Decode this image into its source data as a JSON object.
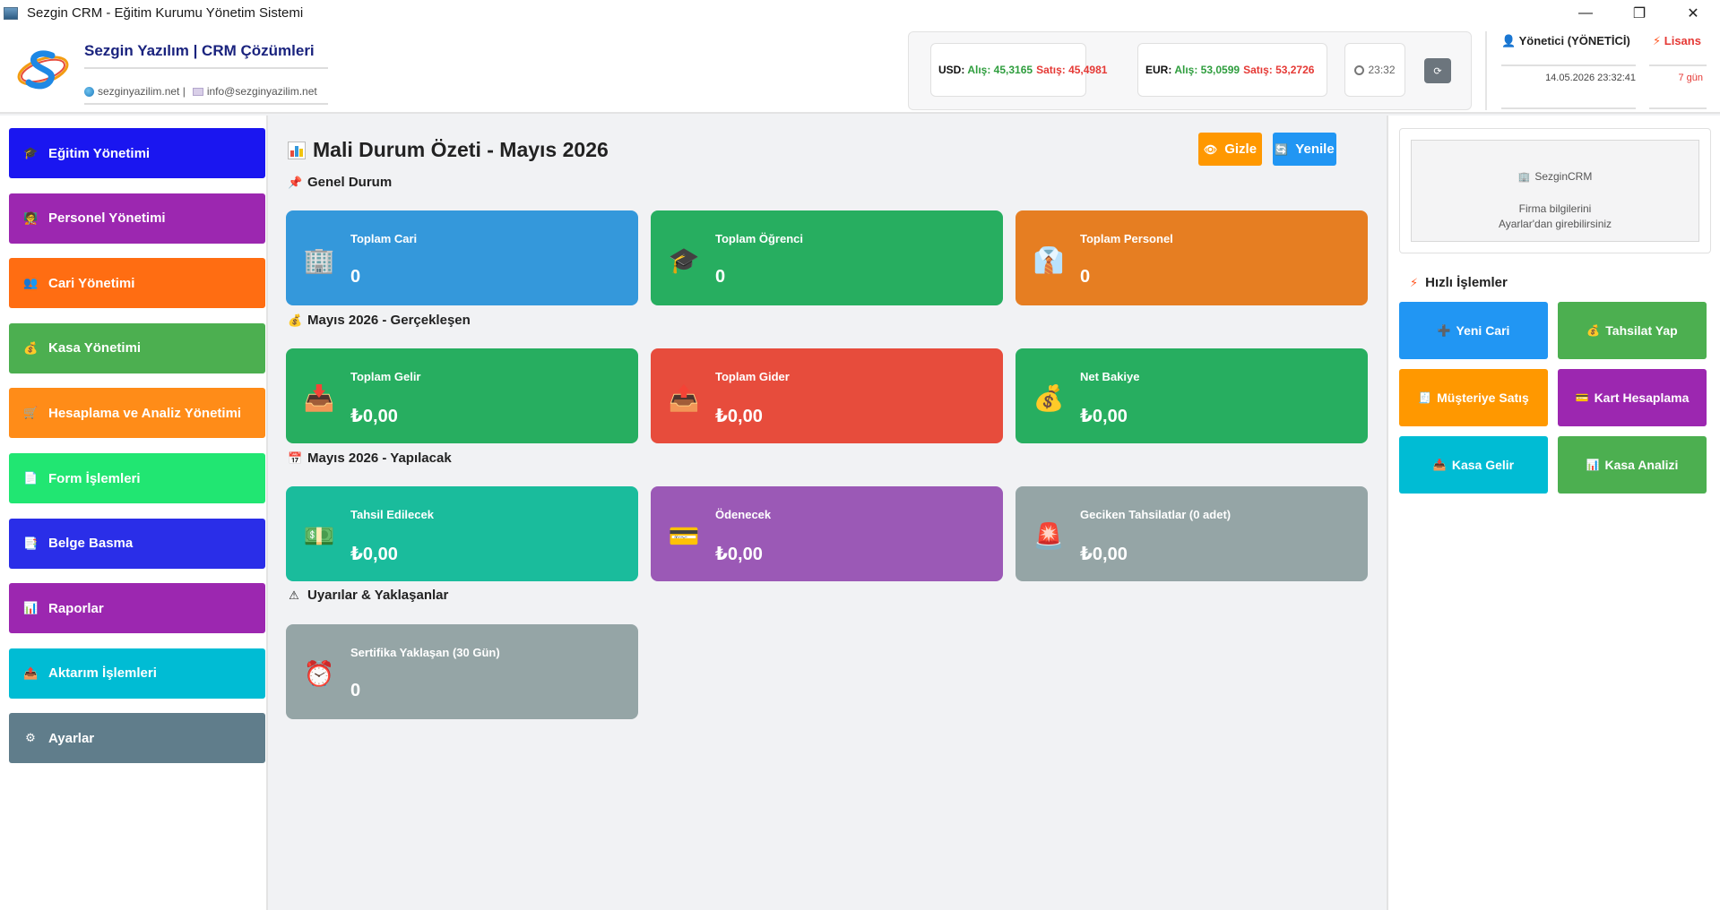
{
  "window": {
    "title": "Sezgin CRM - Eğitim Kurumu Yönetim Sistemi",
    "minimize": "—",
    "restore": "❐",
    "close": "✕"
  },
  "header": {
    "brand_title": "Sezgin Yazılım | CRM Çözümleri",
    "website": "sezginyazilim.net |",
    "email": "info@sezginyazilim.net",
    "usd": {
      "code": "USD:",
      "buy": "Alış: 45,3165",
      "sell": "Satış: 45,4981"
    },
    "eur": {
      "code": "EUR:",
      "buy": "Alış: 53,0599",
      "sell": "Satış: 53,2726"
    },
    "time": "23:32",
    "refresh_icon": "⟳",
    "user_name": "Yönetici (YÖNETİCİ)",
    "login_datetime": "14.05.2026 23:32:41",
    "license_label": "Lisans",
    "license_days": "7 gün"
  },
  "sidebar": {
    "items": [
      {
        "label": "Eğitim Yönetimi",
        "icon": "🎓",
        "color": "#1a16f0"
      },
      {
        "label": "Personel Yönetimi",
        "icon": "🧑‍🏫",
        "color": "#9c27b0"
      },
      {
        "label": "Cari Yönetimi",
        "icon": "👥",
        "color": "#ff6d12"
      },
      {
        "label": "Kasa Yönetimi",
        "icon": "💰",
        "color": "#4caf50"
      },
      {
        "label": "Hesaplama ve Analiz Yönetimi",
        "icon": "🛒",
        "color": "#ff8c18"
      },
      {
        "label": "Form İşlemleri",
        "icon": "📄",
        "color": "#21e672"
      },
      {
        "label": "Belge Basma",
        "icon": "📑",
        "color": "#2a2ee8"
      },
      {
        "label": "Raporlar",
        "icon": "📊",
        "color": "#9c27b0"
      },
      {
        "label": "Aktarım İşlemleri",
        "icon": "📤",
        "color": "#00bcd4"
      },
      {
        "label": "Ayarlar",
        "icon": "⚙",
        "color": "#607d8b"
      }
    ]
  },
  "main": {
    "title": "Mali Durum Özeti - Mayıs 2026",
    "hide_label": "Gizle",
    "hide_icon": "👁",
    "refresh_label": "Yenile",
    "refresh_icon": "🔄",
    "sections": [
      {
        "title": "Genel Durum",
        "icon": "📌",
        "cards": [
          {
            "label": "Toplam Cari",
            "value": "0",
            "icon": "🏢",
            "color": "#3498db"
          },
          {
            "label": "Toplam Öğrenci",
            "value": "0",
            "icon": "🎓",
            "color": "#27ae60"
          },
          {
            "label": "Toplam Personel",
            "value": "0",
            "icon": "👔",
            "color": "#e67e22"
          }
        ]
      },
      {
        "title": "Mayıs 2026 - Gerçekleşen",
        "icon": "💰",
        "cards": [
          {
            "label": "Toplam Gelir",
            "value": "₺0,00",
            "icon": "📥",
            "color": "#27ae60"
          },
          {
            "label": "Toplam Gider",
            "value": "₺0,00",
            "icon": "📤",
            "color": "#e74c3c"
          },
          {
            "label": "Net Bakiye",
            "value": "₺0,00",
            "icon": "💰",
            "color": "#27ae60"
          }
        ]
      },
      {
        "title": "Mayıs 2026 - Yapılacak",
        "icon": "📅",
        "cards": [
          {
            "label": "Tahsil Edilecek",
            "value": "₺0,00",
            "icon": "💵",
            "color": "#1abc9c"
          },
          {
            "label": "Ödenecek",
            "value": "₺0,00",
            "icon": "💳",
            "color": "#9b59b6"
          },
          {
            "label": "Geciken Tahsilatlar (0 adet)",
            "value": "₺0,00",
            "icon": "🚨",
            "color": "#95a5a6"
          }
        ]
      },
      {
        "title": "Uyarılar & Yaklaşanlar",
        "icon": "⚠",
        "cards": [
          {
            "label": "Sertifika Yaklaşan (30 Gün)",
            "value": "0",
            "icon": "⏰",
            "color": "#95a5a6"
          }
        ]
      }
    ]
  },
  "right": {
    "firm_name": "SezginCRM",
    "firm_info_line1": "Firma bilgilerini",
    "firm_info_line2": "Ayarlar'dan girebilirsiniz",
    "quick_title": "Hızlı İşlemler",
    "quick_icon": "⚡",
    "buttons": [
      {
        "label": "Yeni Cari",
        "icon": "➕",
        "color": "#2196f3"
      },
      {
        "label": "Tahsilat Yap",
        "icon": "💰",
        "color": "#4caf50"
      },
      {
        "label": "Müşteriye Satış",
        "icon": "🧾",
        "color": "#ff9800"
      },
      {
        "label": "Kart Hesaplama",
        "icon": "💳",
        "color": "#9c27b0"
      },
      {
        "label": "Kasa Gelir",
        "icon": "📥",
        "color": "#00bcd4"
      },
      {
        "label": "Kasa Analizi",
        "icon": "📊",
        "color": "#4caf50"
      }
    ]
  },
  "colors": {
    "gizle": "#ff9800",
    "yenile": "#2196f3",
    "brand": "#1a237e"
  }
}
